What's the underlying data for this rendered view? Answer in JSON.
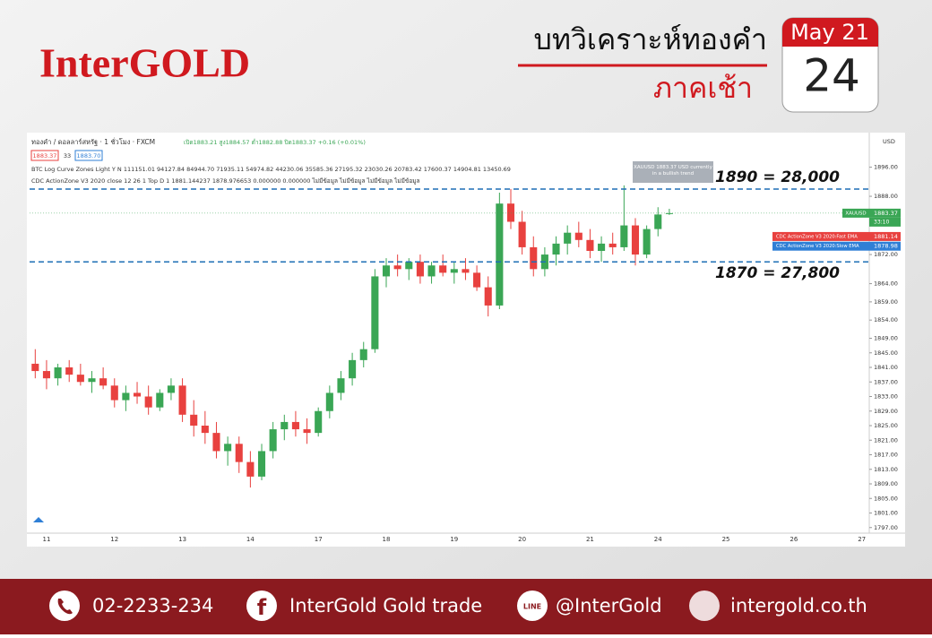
{
  "brand": "InterGOLD",
  "header": {
    "title": "บทวิเคราะห์ทองคำ",
    "subtitle": "ภาคเช้า",
    "month": "May 21",
    "day": "24"
  },
  "panel": {
    "symbol": "ทองคำ / ดอลลาร์สหรัฐ · 1 ชั่วโมง · FXCM",
    "ohlc": "เปิด1883.21 สูง1884.57 ต่ำ1882.88 ปิด1883.37 +0.16 (+0.01%)",
    "bid": "1883.37",
    "spread": "33",
    "ask": "1883.70",
    "indicator1": "BTC Log Curve Zones Light Y N  111151.01 94127.84 84944.70 71935.11 54974.82 44230.06 35585.36 27195.32 23030.26 20783.42 17600.37 14904.81 13450.69",
    "indicator2": "CDC ActionZone V3 2020 close 12 26 1 Top D 1  1881.144237 1878.976653 0.000000 0.000000 ไม่มีข้อมูล ไม่มีข้อมูล ไม่มีข้อมูล ไม่มีข้อมูล",
    "note": "XAUUSD 1883.37 USD currently in a bullish trend",
    "currency": "USD",
    "countdown": "33:10"
  },
  "chart_data": {
    "type": "candlestick",
    "categories": [
      null,
      "11",
      null,
      null,
      null,
      null,
      null,
      "12",
      null,
      null,
      null,
      null,
      null,
      "13",
      null,
      null,
      null,
      null,
      null,
      "14",
      null,
      null,
      null,
      null,
      null,
      "17",
      null,
      null,
      null,
      null,
      null,
      "18",
      null,
      null,
      null,
      null,
      null,
      "19",
      null,
      null,
      null,
      null,
      null,
      "20",
      null,
      null,
      null,
      null,
      null,
      "21",
      null,
      null,
      null,
      null,
      null,
      "24",
      null,
      null,
      null,
      null,
      null,
      "25",
      null,
      null,
      null,
      null,
      null,
      "26",
      null,
      null,
      null,
      null,
      null,
      "27"
    ],
    "open": [
      1842,
      1840,
      1838,
      1841,
      1839,
      1837,
      1838,
      1836,
      1832,
      1834,
      1833,
      1830,
      1834,
      1836,
      1828,
      1825,
      1823,
      1818,
      1820,
      1815,
      1811,
      1818,
      1824,
      1826,
      1824,
      1823,
      1829,
      1834,
      1838,
      1843,
      1846,
      1866,
      1869,
      1868,
      1870,
      1866,
      1869,
      1867,
      1868,
      1867,
      1863,
      1858,
      1886,
      1881,
      1874,
      1868,
      1872,
      1875,
      1878,
      1876,
      1873,
      1875,
      1874,
      1880,
      1872,
      1879,
      1883.21,
      null,
      null,
      null,
      null,
      null,
      null,
      null,
      null,
      null,
      null,
      null,
      null,
      null,
      null,
      null,
      null,
      null
    ],
    "high": [
      1846,
      1843,
      1842,
      1843,
      1842,
      1840,
      1841,
      1838,
      1836,
      1837,
      1836,
      1835,
      1838,
      1838,
      1832,
      1829,
      1826,
      1822,
      1822,
      1818,
      1820,
      1826,
      1828,
      1829,
      1827,
      1830,
      1836,
      1840,
      1845,
      1848,
      1868,
      1871,
      1872,
      1871,
      1872,
      1870,
      1872,
      1870,
      1871,
      1869,
      1866,
      1889,
      1890,
      1884,
      1877,
      1874,
      1877,
      1880,
      1881,
      1879,
      1877,
      1878,
      1891,
      1882,
      1880,
      1885,
      1884.57,
      null,
      null,
      null,
      null,
      null,
      null,
      null,
      null,
      null,
      null,
      null,
      null,
      null,
      null,
      null,
      null,
      null
    ],
    "low": [
      1838,
      1835,
      1836,
      1837,
      1836,
      1834,
      1835,
      1830,
      1829,
      1831,
      1828,
      1829,
      1832,
      1826,
      1822,
      1820,
      1816,
      1814,
      1812,
      1808,
      1810,
      1816,
      1821,
      1822,
      1820,
      1822,
      1827,
      1832,
      1836,
      1841,
      1845,
      1863,
      1866,
      1865,
      1864,
      1864,
      1866,
      1864,
      1865,
      1862,
      1855,
      1857,
      1879,
      1872,
      1866,
      1866,
      1869,
      1872,
      1874,
      1871,
      1870,
      1872,
      1873,
      1869,
      1871,
      1877,
      1882.88,
      null,
      null,
      null,
      null,
      null,
      null,
      null,
      null,
      null,
      null,
      null,
      null,
      null,
      null,
      null,
      null,
      null
    ],
    "close": [
      1840,
      1838,
      1841,
      1839,
      1837,
      1838,
      1836,
      1832,
      1834,
      1833,
      1830,
      1834,
      1836,
      1828,
      1825,
      1823,
      1818,
      1820,
      1815,
      1811,
      1818,
      1824,
      1826,
      1824,
      1823,
      1829,
      1834,
      1838,
      1843,
      1846,
      1866,
      1869,
      1868,
      1870,
      1866,
      1869,
      1867,
      1868,
      1867,
      1863,
      1858,
      1886,
      1881,
      1874,
      1868,
      1872,
      1875,
      1878,
      1876,
      1873,
      1875,
      1874,
      1880,
      1872,
      1879,
      1883,
      1883.37,
      null,
      null,
      null,
      null,
      null,
      null,
      null,
      null,
      null,
      null,
      null,
      null,
      null,
      null,
      null,
      null,
      null
    ],
    "up_color": "#3aa655",
    "down_color": "#e8413f",
    "ylim": [
      1793,
      1905
    ],
    "yticks": [
      {
        "value": 1896,
        "label": "1896.00"
      },
      {
        "value": 1888,
        "label": "1888.00"
      },
      {
        "value": 1872,
        "label": "1872.00"
      },
      {
        "value": 1864,
        "label": "1864.00"
      },
      {
        "value": 1859,
        "label": "1859.00"
      },
      {
        "value": 1854,
        "label": "1854.00"
      },
      {
        "value": 1849,
        "label": "1849.00"
      },
      {
        "value": 1845,
        "label": "1845.00"
      },
      {
        "value": 1841,
        "label": "1841.00"
      },
      {
        "value": 1837,
        "label": "1837.00"
      },
      {
        "value": 1833,
        "label": "1833.00"
      },
      {
        "value": 1829,
        "label": "1829.00"
      },
      {
        "value": 1825,
        "label": "1825.00"
      },
      {
        "value": 1821,
        "label": "1821.00"
      },
      {
        "value": 1817,
        "label": "1817.00"
      },
      {
        "value": 1813,
        "label": "1813.00"
      },
      {
        "value": 1809,
        "label": "1809.00"
      },
      {
        "value": 1805,
        "label": "1805.00"
      },
      {
        "value": 1801,
        "label": "1801.00"
      },
      {
        "value": 1797,
        "label": "1797.00"
      }
    ],
    "levels": [
      {
        "value": 1890,
        "label": "1890 = 28,000"
      },
      {
        "value": 1870,
        "label": "1870 = 27,800"
      }
    ],
    "level_color": "#1e6fb5",
    "price_tags": [
      {
        "name": "XAUUSD",
        "value": 1883.37,
        "color": "#3aa655"
      },
      {
        "name": "CDC ActionZone V3 2020:Fast EMA",
        "value": 1881.14,
        "color": "#e8413f"
      },
      {
        "name": "CDC ActionZone V3 2020:Slow EMA",
        "value": 1878.98,
        "color": "#2f7fd6"
      }
    ]
  },
  "footer": {
    "phone": "02-2233-234",
    "facebook": "InterGold Gold trade",
    "line": "@InterGold",
    "web": "intergold.co.th"
  }
}
